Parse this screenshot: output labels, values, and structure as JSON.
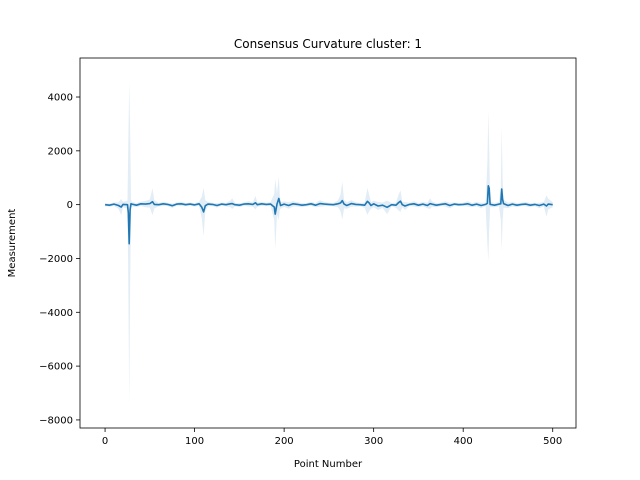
{
  "chart_data": {
    "type": "line",
    "title": "Consensus Curvature cluster: 1",
    "xlabel": "Point Number",
    "ylabel": "Measurement",
    "xlim": [
      -28,
      526
    ],
    "ylim": [
      -8300,
      5450
    ],
    "xticks": [
      0,
      100,
      200,
      300,
      400,
      500
    ],
    "yticks": [
      -8000,
      -6000,
      -4000,
      -2000,
      0,
      2000,
      4000
    ],
    "ytick_labels": [
      "−8000",
      "−6000",
      "−4000",
      "−2000",
      "0",
      "2000",
      "4000"
    ],
    "grid": false,
    "line_color": "#1f77b4",
    "band_color": "#1f77b4",
    "series": [
      {
        "x": [
          0,
          5,
          10,
          15,
          18,
          20,
          25,
          26,
          27,
          28,
          29,
          30,
          35,
          40,
          45,
          50,
          53,
          55,
          60,
          65,
          70,
          75,
          80,
          85,
          90,
          95,
          100,
          105,
          108,
          110,
          112,
          115,
          120,
          125,
          130,
          135,
          140,
          142,
          145,
          150,
          155,
          160,
          165,
          168,
          170,
          175,
          180,
          185,
          189,
          190,
          192,
          194,
          195,
          196,
          200,
          205,
          210,
          215,
          220,
          225,
          230,
          235,
          240,
          245,
          250,
          255,
          260,
          263,
          265,
          267,
          270,
          275,
          280,
          285,
          290,
          293,
          295,
          297,
          300,
          305,
          310,
          315,
          320,
          325,
          328,
          330,
          332,
          335,
          340,
          345,
          350,
          355,
          360,
          363,
          365,
          370,
          375,
          380,
          385,
          390,
          395,
          400,
          405,
          410,
          415,
          420,
          425,
          427,
          428,
          429,
          430,
          435,
          440,
          442,
          443,
          444,
          445,
          450,
          455,
          460,
          465,
          470,
          475,
          480,
          485,
          490,
          493,
          495,
          500
        ],
        "mean": [
          0,
          -20,
          20,
          -30,
          -90,
          10,
          0,
          -300,
          -1450,
          -200,
          30,
          20,
          -20,
          30,
          20,
          40,
          110,
          10,
          0,
          30,
          10,
          -40,
          20,
          30,
          0,
          20,
          -10,
          30,
          -100,
          -270,
          -40,
          20,
          10,
          -30,
          20,
          0,
          30,
          40,
          0,
          -20,
          20,
          30,
          10,
          70,
          0,
          30,
          10,
          20,
          -90,
          -350,
          20,
          230,
          100,
          -30,
          20,
          -30,
          30,
          10,
          -20,
          0,
          30,
          -20,
          40,
          20,
          10,
          0,
          30,
          60,
          150,
          20,
          -30,
          40,
          10,
          0,
          -20,
          120,
          60,
          -30,
          30,
          -50,
          -20,
          -100,
          0,
          -20,
          80,
          130,
          0,
          -50,
          10,
          30,
          -20,
          20,
          -30,
          40,
          20,
          -20,
          10,
          30,
          -30,
          20,
          0,
          10,
          30,
          -20,
          20,
          -30,
          10,
          50,
          700,
          600,
          10,
          -20,
          20,
          30,
          580,
          200,
          40,
          -30,
          20,
          -20,
          10,
          20,
          -20,
          10,
          -30,
          20,
          -50,
          20,
          0
        ],
        "band": [
          60,
          60,
          60,
          120,
          300,
          100,
          150,
          2500,
          6000,
          3000,
          150,
          80,
          80,
          80,
          120,
          150,
          500,
          150,
          60,
          80,
          60,
          80,
          60,
          80,
          60,
          60,
          60,
          80,
          400,
          900,
          200,
          80,
          60,
          80,
          60,
          60,
          120,
          200,
          60,
          80,
          60,
          100,
          80,
          250,
          80,
          80,
          60,
          80,
          500,
          1300,
          400,
          800,
          300,
          120,
          100,
          120,
          100,
          80,
          80,
          60,
          80,
          80,
          120,
          80,
          60,
          60,
          120,
          300,
          700,
          150,
          120,
          120,
          80,
          60,
          100,
          500,
          300,
          120,
          120,
          150,
          100,
          250,
          60,
          100,
          300,
          400,
          100,
          150,
          60,
          100,
          80,
          80,
          100,
          200,
          100,
          80,
          60,
          100,
          100,
          60,
          60,
          60,
          100,
          80,
          80,
          100,
          60,
          1500,
          2800,
          1500,
          100,
          80,
          80,
          600,
          2300,
          800,
          150,
          100,
          80,
          80,
          60,
          80,
          80,
          60,
          100,
          80,
          400,
          200,
          100
        ]
      }
    ]
  }
}
